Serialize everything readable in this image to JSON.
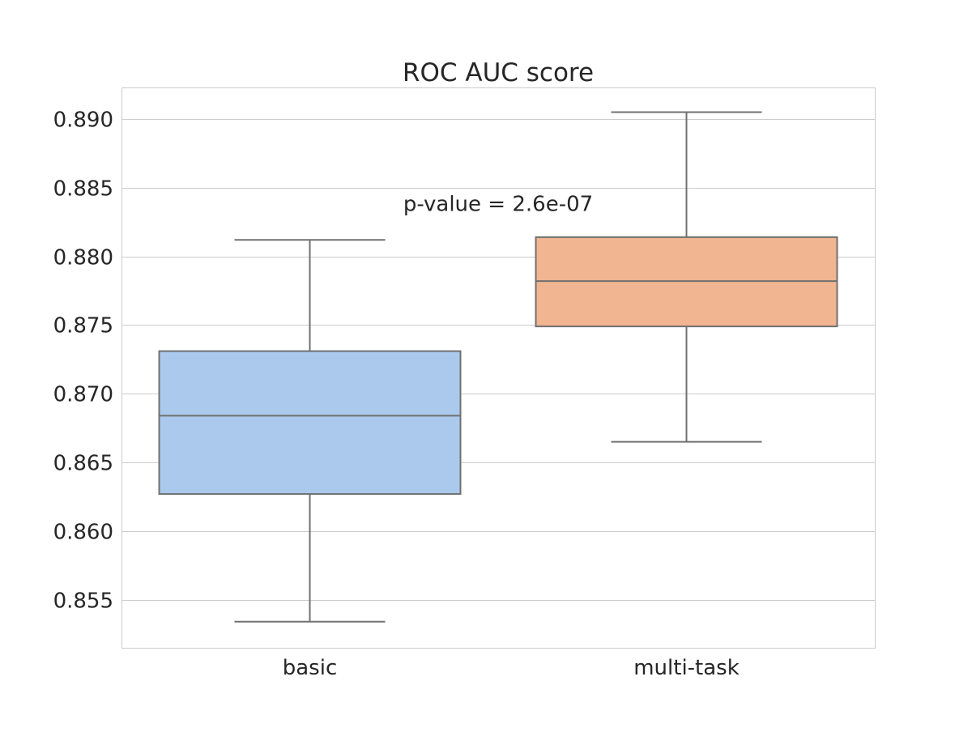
{
  "chart_data": {
    "type": "box",
    "title": "ROC AUC score",
    "xlabel": "",
    "ylabel": "",
    "ylim": [
      0.8515,
      0.8923
    ],
    "yticks": [
      0.855,
      0.86,
      0.865,
      0.87,
      0.875,
      0.88,
      0.885,
      0.89
    ],
    "ytick_labels": [
      "0.855",
      "0.860",
      "0.865",
      "0.870",
      "0.875",
      "0.880",
      "0.885",
      "0.890"
    ],
    "grid": true,
    "categories": [
      "basic",
      "multi-task"
    ],
    "boxes": [
      {
        "category": "basic",
        "whisker_low": 0.8534,
        "q1": 0.8627,
        "median": 0.8684,
        "q3": 0.8731,
        "whisker_high": 0.8812,
        "color": "#abc9ed"
      },
      {
        "category": "multi-task",
        "whisker_low": 0.8665,
        "q1": 0.8749,
        "median": 0.8782,
        "q3": 0.8814,
        "whisker_high": 0.8905,
        "color": "#f1b591"
      }
    ],
    "annotations": [
      {
        "text": "p-value = 2.6e-07",
        "x": 0.5,
        "y": 0.8833
      }
    ],
    "colors": {
      "box_edge": "#707070",
      "grid": "#cccccc",
      "spine": "#cccccc",
      "text": "#262626"
    }
  }
}
